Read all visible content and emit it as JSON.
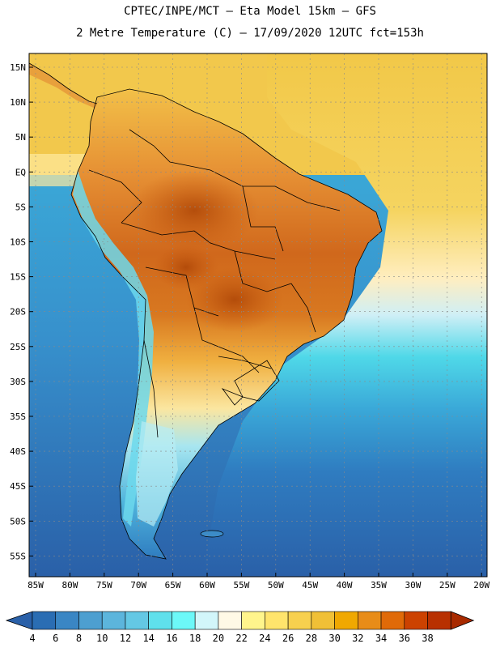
{
  "header": {
    "line1": "CPTEC/INPE/MCT –  Eta Model 15km – GFS",
    "line2": "2 Metre Temperature (C) – 17/09/2020 12UTC fct=153h"
  },
  "map": {
    "lat_labels": [
      "15N",
      "10N",
      "5N",
      "EQ",
      "5S",
      "10S",
      "15S",
      "20S",
      "25S",
      "30S",
      "35S",
      "40S",
      "45S",
      "50S",
      "55S"
    ],
    "lon_labels": [
      "85W",
      "80W",
      "75W",
      "70W",
      "65W",
      "60W",
      "55W",
      "50W",
      "45W",
      "40W",
      "35W",
      "30W",
      "25W",
      "20W"
    ]
  },
  "colorbar": {
    "labels": [
      "4",
      "6",
      "8",
      "10",
      "12",
      "14",
      "16",
      "18",
      "20",
      "22",
      "24",
      "26",
      "28",
      "30",
      "32",
      "34",
      "36",
      "38"
    ],
    "colors": [
      "#2a6db3",
      "#3a86c4",
      "#4d9fd0",
      "#5cb5dc",
      "#64c8e4",
      "#5fe0ec",
      "#6cf8f8",
      "#d2f6fa",
      "#fff9e6",
      "#fff58c",
      "#ffe46c",
      "#f7d04e",
      "#f0c036",
      "#f0a800",
      "#e88c18",
      "#e06a08",
      "#cc4200",
      "#b83000"
    ]
  },
  "colors": {
    "ocean_deep": "#2a60a8",
    "ocean_mid": "#3c8cc8",
    "ocean_warm": "#58c4e0",
    "atlantic_tropical": "#f0c848",
    "land_hot": "#d87020",
    "land_warm": "#e89a30",
    "border": "#000000"
  }
}
